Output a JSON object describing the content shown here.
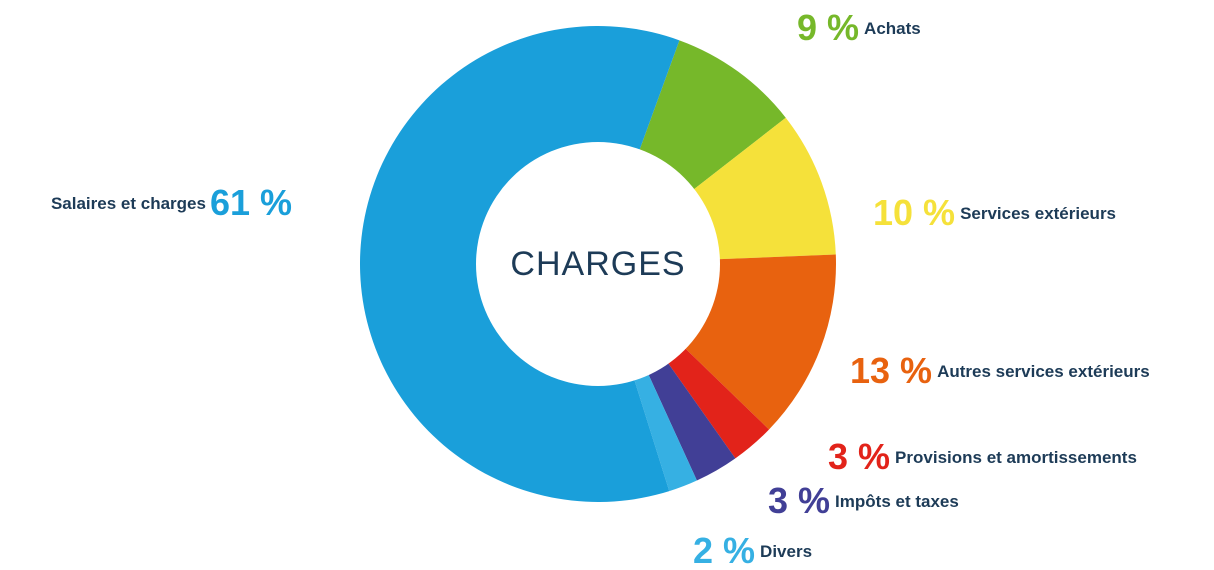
{
  "chart_data": {
    "type": "donut",
    "title": "CHARGES",
    "categories": [
      "Achats",
      "Services extérieurs",
      "Autres services extérieurs",
      "Provisions et amortissements",
      "Impôts et taxes",
      "Divers",
      "Salaires et charges"
    ],
    "values": [
      9,
      10,
      13,
      3,
      3,
      2,
      61
    ],
    "value_labels": [
      "9 %",
      "10 %",
      "13 %",
      "3 %",
      "3 %",
      "2 %",
      "61 %"
    ],
    "colors": [
      "#76b82a",
      "#f5e13a",
      "#e8620f",
      "#e2231a",
      "#413f96",
      "#36b0e3",
      "#1a9fda"
    ]
  }
}
